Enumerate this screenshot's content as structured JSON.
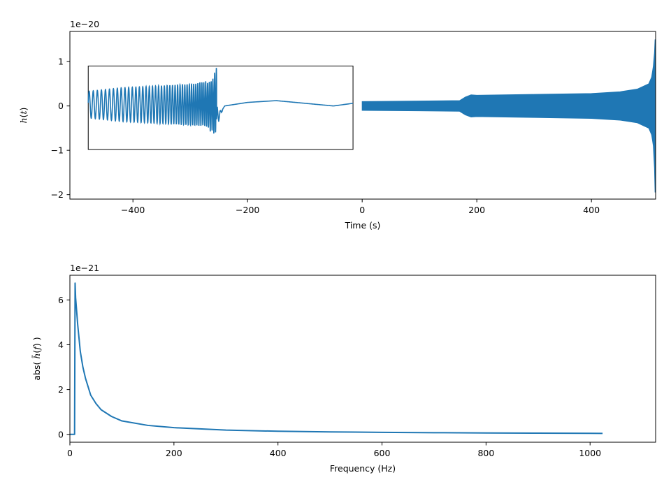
{
  "chart_data": [
    {
      "type": "line",
      "title": "",
      "xlabel": "Time (s)",
      "ylabel_text": "h(t)",
      "ylabel_parts": {
        "pre": "",
        "sym": "h",
        "post": "(",
        "arg": "t",
        "close": ")"
      },
      "offset_text": "1e−20",
      "xlim": [
        -510,
        512
      ],
      "ylim": [
        -2.1,
        1.68
      ],
      "xticks": [
        -400,
        -200,
        0,
        200,
        400
      ],
      "xtick_labels": [
        "−400",
        "−200",
        "0",
        "200",
        "400"
      ],
      "yticks": [
        1,
        0,
        -1,
        -2
      ],
      "ytick_labels": [
        "1",
        "0",
        "−1",
        "−2"
      ],
      "color": "#1f77b4",
      "grid": false,
      "series": [
        {
          "x": [
            0,
            100,
            170,
            180,
            190,
            200,
            300,
            400,
            450,
            480,
            500,
            505,
            508,
            510,
            511
          ],
          "envelope_upper": [
            0.1,
            0.11,
            0.12,
            0.2,
            0.25,
            0.24,
            0.26,
            0.28,
            0.32,
            0.38,
            0.5,
            0.65,
            0.9,
            1.2,
            1.5
          ],
          "envelope_lower": [
            -0.1,
            -0.11,
            -0.12,
            -0.2,
            -0.25,
            -0.24,
            -0.26,
            -0.28,
            -0.32,
            -0.38,
            -0.5,
            -0.65,
            -0.9,
            -1.4,
            -1.95
          ]
        }
      ],
      "inset": {
        "description_values": {
          "x_start": -478,
          "x_end": -16,
          "y_top": 0.9,
          "y_bottom": -0.98
        },
        "chirp_x": [
          -478,
          -420,
          -360,
          -300,
          -270,
          -260,
          -254
        ],
        "chirp_amplitude": [
          0.3,
          0.38,
          0.42,
          0.46,
          0.5,
          0.6,
          0.78
        ],
        "ringdown_x": [
          -254,
          -240,
          -200,
          -150,
          -100,
          -50,
          -16
        ],
        "ringdown_y": [
          -0.3,
          0.0,
          0.08,
          0.12,
          0.06,
          0.0,
          0.06
        ]
      }
    },
    {
      "type": "line",
      "title": "",
      "xlabel": "Frequency (Hz)",
      "ylabel_text": "abs( h̃(f) )",
      "ylabel_parts": {
        "pre": "abs( ",
        "sym": "h̃",
        "post": "(",
        "arg": "f",
        "close": ") )"
      },
      "offset_text": "1e−21",
      "xlim": [
        0,
        1126
      ],
      "ylim": [
        -0.35,
        7.1
      ],
      "xticks": [
        0,
        200,
        400,
        600,
        800,
        1000
      ],
      "xtick_labels": [
        "0",
        "200",
        "400",
        "600",
        "800",
        "1000"
      ],
      "yticks": [
        6,
        4,
        2,
        0
      ],
      "ytick_labels": [
        "6",
        "4",
        "2",
        "0"
      ],
      "color": "#1f77b4",
      "grid": false,
      "series": [
        {
          "x": [
            0,
            9,
            10,
            11,
            15,
            20,
            25,
            30,
            40,
            50,
            60,
            80,
            100,
            150,
            200,
            300,
            400,
            500,
            600,
            700,
            800,
            900,
            1000,
            1024
          ],
          "y": [
            0,
            0,
            6.75,
            6.1,
            4.9,
            3.7,
            3.0,
            2.5,
            1.75,
            1.38,
            1.1,
            0.8,
            0.6,
            0.4,
            0.3,
            0.19,
            0.14,
            0.11,
            0.09,
            0.075,
            0.065,
            0.055,
            0.048,
            0.045
          ]
        }
      ]
    }
  ]
}
